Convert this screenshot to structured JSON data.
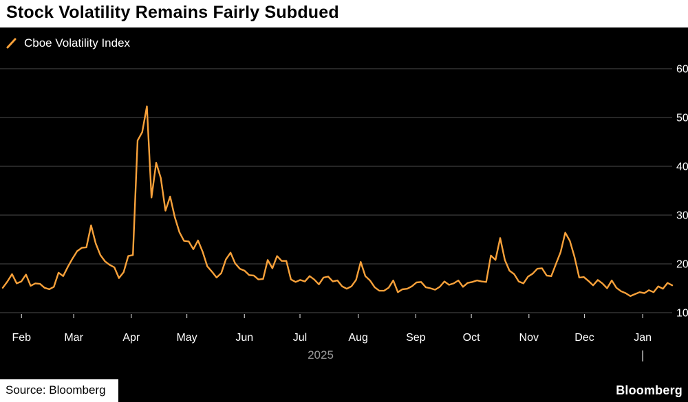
{
  "header": {
    "title": "Stock Volatility Remains Fairly Subdued"
  },
  "legend": {
    "label": "Cboe Volatility Index"
  },
  "footer": {
    "source": "Source: Bloomberg",
    "brand": "Bloomberg"
  },
  "colors": {
    "background": "#000000",
    "header_bg": "#ffffff",
    "line": "#F8A13A",
    "grid": "#4d4d4d",
    "tick": "#c8c8c8",
    "axis_text": "#ffffff",
    "year_text": "#9b9b9b"
  },
  "chart_data": {
    "type": "line",
    "title": "Stock Volatility Remains Fairly Subdued",
    "series_name": "Cboe Volatility Index",
    "xlabel": "",
    "ylabel": "",
    "grid": true,
    "legend_position": "top-left",
    "ylim": [
      10,
      60
    ],
    "y_ticks": [
      10,
      20,
      30,
      40,
      50,
      60
    ],
    "x_ticks": [
      {
        "label": "Feb",
        "pos": 0.028
      },
      {
        "label": "Mar",
        "pos": 0.106
      },
      {
        "label": "Apr",
        "pos": 0.192
      },
      {
        "label": "May",
        "pos": 0.275
      },
      {
        "label": "Jun",
        "pos": 0.361
      },
      {
        "label": "Jul",
        "pos": 0.444
      },
      {
        "label": "Aug",
        "pos": 0.531
      },
      {
        "label": "Sep",
        "pos": 0.617
      },
      {
        "label": "Oct",
        "pos": 0.7
      },
      {
        "label": "Nov",
        "pos": 0.786
      },
      {
        "label": "Dec",
        "pos": 0.869
      },
      {
        "label": "Jan",
        "pos": 0.956
      }
    ],
    "year_label": {
      "label": "2025",
      "pos": 0.466
    },
    "year_boundary_marker": {
      "pos": 0.956
    },
    "values": [
      15.1,
      16.4,
      17.9,
      16.0,
      16.4,
      17.8,
      15.5,
      16.0,
      15.9,
      15.1,
      14.8,
      15.3,
      18.2,
      17.5,
      19.4,
      21.1,
      22.6,
      23.3,
      23.4,
      27.9,
      24.2,
      21.8,
      20.5,
      19.8,
      19.3,
      17.1,
      18.3,
      21.6,
      21.8,
      45.3,
      47.0,
      52.3,
      33.6,
      40.7,
      37.6,
      30.9,
      33.8,
      29.6,
      26.5,
      24.7,
      24.6,
      23.0,
      24.8,
      22.5,
      19.5,
      18.4,
      17.2,
      18.1,
      20.9,
      22.3,
      20.1,
      19.0,
      18.6,
      17.7,
      17.6,
      16.8,
      16.9,
      20.8,
      19.1,
      21.6,
      20.6,
      20.6,
      16.8,
      16.3,
      16.7,
      16.4,
      17.5,
      16.8,
      15.8,
      17.2,
      17.4,
      16.4,
      16.6,
      15.4,
      14.9,
      15.4,
      16.7,
      20.4,
      17.5,
      16.6,
      15.2,
      14.5,
      14.5,
      15.1,
      16.6,
      14.2,
      14.8,
      14.9,
      15.4,
      16.2,
      16.3,
      15.2,
      15.0,
      14.7,
      15.3,
      16.4,
      15.7,
      16.0,
      16.6,
      15.3,
      16.1,
      16.3,
      16.6,
      16.4,
      16.3,
      21.7,
      20.8,
      25.3,
      20.8,
      18.6,
      17.9,
      16.4,
      16.0,
      17.4,
      18.0,
      19.0,
      19.1,
      17.6,
      17.5,
      20.0,
      22.4,
      26.4,
      24.7,
      21.4,
      17.2,
      17.3,
      16.5,
      15.6,
      16.7,
      16.0,
      15.0,
      16.6,
      15.1,
      14.4,
      14.0,
      13.4,
      13.8,
      14.2,
      14.0,
      14.6,
      14.2,
      15.4,
      14.9,
      16.1,
      15.6
    ]
  }
}
